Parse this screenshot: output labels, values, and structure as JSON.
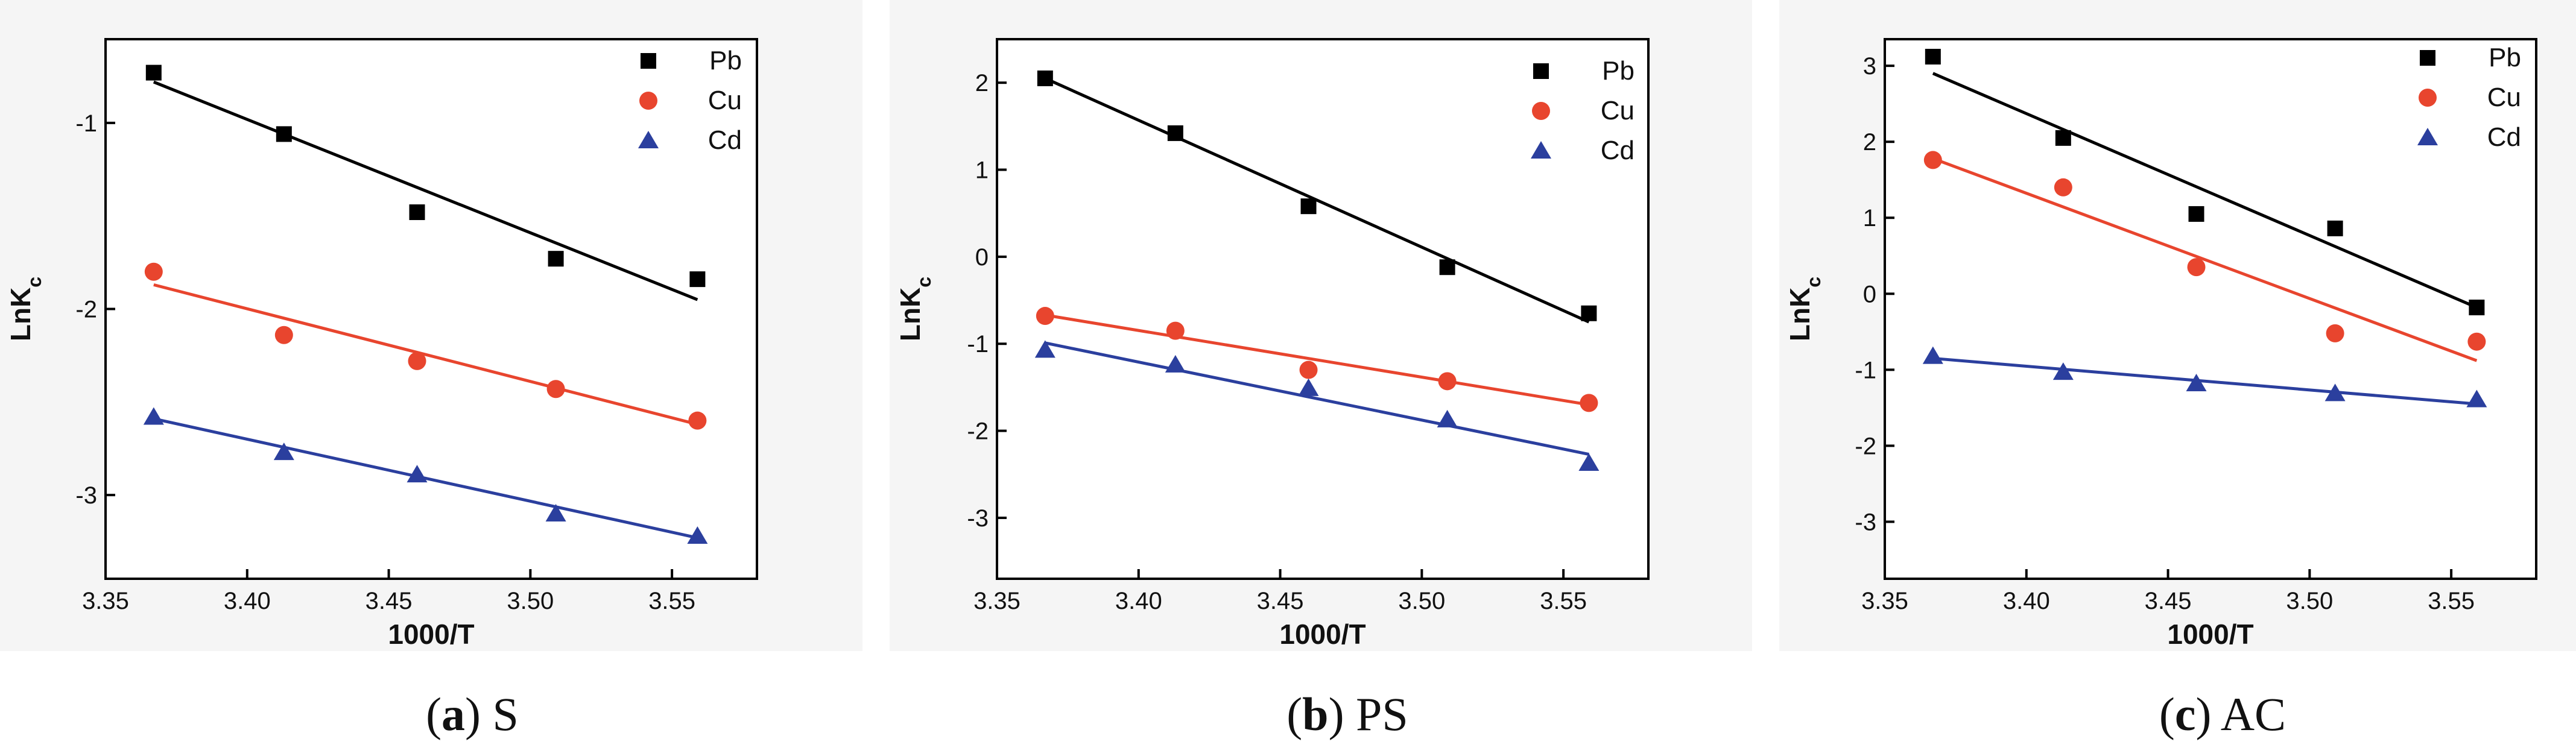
{
  "figure": {
    "captions": [
      {
        "letter": "a",
        "label": "S"
      },
      {
        "letter": "b",
        "label": "PS"
      },
      {
        "letter": "c",
        "label": "AC"
      }
    ]
  },
  "chart_data": [
    {
      "type": "scatter",
      "panel": "a",
      "xlabel": "1000/T",
      "ylabel": "LnK",
      "ylabel_sub": "c",
      "xlim": [
        3.35,
        3.58
      ],
      "ylim": [
        -3.45,
        -0.55
      ],
      "xticks": [
        3.35,
        3.4,
        3.45,
        3.5,
        3.55
      ],
      "xtick_labels": [
        "3.35",
        "3.40",
        "3.45",
        "3.50",
        "3.55"
      ],
      "yticks": [
        -3,
        -2,
        -1
      ],
      "ytick_labels": [
        "-3",
        "-2",
        "-1"
      ],
      "legend_position": "top-right",
      "x": [
        3.367,
        3.413,
        3.46,
        3.509,
        3.559
      ],
      "series": [
        {
          "name": "Pb",
          "marker": "square",
          "color": "#000000",
          "values": [
            -0.73,
            -1.06,
            -1.48,
            -1.73,
            -1.84
          ],
          "fit": [
            -0.78,
            -1.95
          ]
        },
        {
          "name": "Cu",
          "marker": "circle",
          "color": "#e8452e",
          "values": [
            -1.8,
            -2.14,
            -2.28,
            -2.43,
            -2.6
          ],
          "fit": [
            -1.87,
            -2.62
          ]
        },
        {
          "name": "Cd",
          "marker": "triangle",
          "color": "#2b3f9e",
          "values": [
            -2.58,
            -2.77,
            -2.89,
            -3.1,
            -3.22
          ],
          "fit": [
            -2.59,
            -3.23
          ]
        }
      ]
    },
    {
      "type": "scatter",
      "panel": "b",
      "xlabel": "1000/T",
      "ylabel": "LnK",
      "ylabel_sub": "c",
      "xlim": [
        3.35,
        3.58
      ],
      "ylim": [
        -3.7,
        2.5
      ],
      "xticks": [
        3.35,
        3.4,
        3.45,
        3.5,
        3.55
      ],
      "xtick_labels": [
        "3.35",
        "3.40",
        "3.45",
        "3.50",
        "3.55"
      ],
      "yticks": [
        -3,
        -2,
        -1,
        0,
        1,
        2
      ],
      "ytick_labels": [
        "-3",
        "-2",
        "-1",
        "0",
        "1",
        "2"
      ],
      "legend_position": "top-right",
      "x": [
        3.367,
        3.413,
        3.46,
        3.509,
        3.559
      ],
      "series": [
        {
          "name": "Pb",
          "marker": "square",
          "color": "#000000",
          "values": [
            2.05,
            1.42,
            0.58,
            -0.12,
            -0.65
          ],
          "fit": [
            2.05,
            -0.75
          ]
        },
        {
          "name": "Cu",
          "marker": "circle",
          "color": "#e8452e",
          "values": [
            -0.68,
            -0.85,
            -1.3,
            -1.43,
            -1.68
          ],
          "fit": [
            -0.67,
            -1.7
          ]
        },
        {
          "name": "Cd",
          "marker": "triangle",
          "color": "#2b3f9e",
          "values": [
            -1.07,
            -1.24,
            -1.51,
            -1.87,
            -2.37
          ],
          "fit": [
            -0.99,
            -2.27
          ]
        }
      ]
    },
    {
      "type": "scatter",
      "panel": "c",
      "xlabel": "1000/T",
      "ylabel": "LnK",
      "ylabel_sub": "c",
      "xlim": [
        3.35,
        3.58
      ],
      "ylim": [
        -3.75,
        3.35
      ],
      "xticks": [
        3.35,
        3.4,
        3.45,
        3.5,
        3.55
      ],
      "xtick_labels": [
        "3.35",
        "3.40",
        "3.45",
        "3.50",
        "3.55"
      ],
      "yticks": [
        -3,
        -2,
        -1,
        0,
        1,
        2,
        3
      ],
      "ytick_labels": [
        "-3",
        "-2",
        "-1",
        "0",
        "1",
        "2",
        "3"
      ],
      "legend_position": "top-right",
      "x": [
        3.367,
        3.413,
        3.46,
        3.509,
        3.559
      ],
      "series": [
        {
          "name": "Pb",
          "marker": "square",
          "color": "#000000",
          "values": [
            3.12,
            2.05,
            1.05,
            0.86,
            -0.18
          ],
          "fit": [
            2.9,
            -0.18
          ]
        },
        {
          "name": "Cu",
          "marker": "circle",
          "color": "#e8452e",
          "values": [
            1.76,
            1.4,
            0.35,
            -0.52,
            -0.63
          ],
          "fit": [
            1.78,
            -0.88
          ]
        },
        {
          "name": "Cd",
          "marker": "triangle",
          "color": "#2b3f9e",
          "values": [
            -0.82,
            -1.03,
            -1.18,
            -1.31,
            -1.39
          ],
          "fit": [
            -0.85,
            -1.45
          ]
        }
      ]
    }
  ]
}
